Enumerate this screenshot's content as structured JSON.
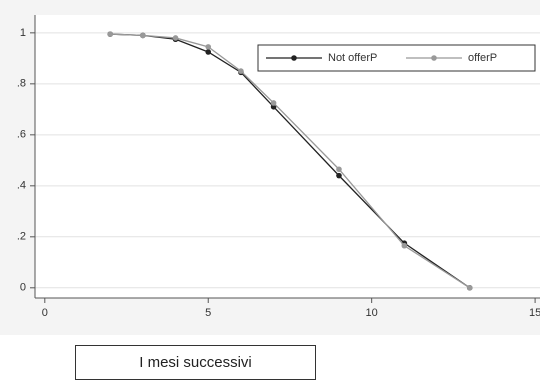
{
  "chart_data": {
    "type": "line",
    "x_title": "I mesi successivi",
    "x": [
      2,
      3,
      4,
      5,
      6,
      7,
      9,
      11,
      13
    ],
    "series": [
      {
        "name": "Not offerP",
        "color": "#222222",
        "values": [
          0.995,
          0.99,
          0.975,
          0.925,
          0.845,
          0.71,
          0.44,
          0.175,
          0.0
        ]
      },
      {
        "name": "offerP",
        "color": "#999999",
        "values": [
          0.995,
          0.99,
          0.98,
          0.945,
          0.85,
          0.725,
          0.465,
          0.165,
          0.0
        ]
      }
    ],
    "xlim": [
      -0.3,
      15.15
    ],
    "xticks": [
      0,
      5,
      10,
      15
    ],
    "ylim": [
      -0.04,
      1.07
    ],
    "yticks": [
      0,
      {
        "value": 0.2,
        "label": ".2"
      },
      {
        "value": 0.4,
        "label": ".4"
      },
      {
        "value": 0.6,
        "label": ".6"
      },
      {
        "value": 0.8,
        "label": ".8"
      },
      1
    ],
    "grid": true,
    "legend": "top-right"
  }
}
